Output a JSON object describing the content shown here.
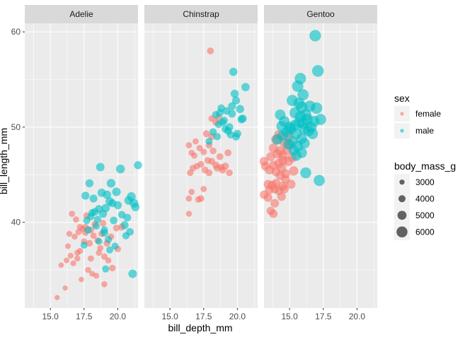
{
  "chart_data": {
    "type": "scatter",
    "facet_by": "species",
    "facets": [
      "Adelie",
      "Chinstrap",
      "Gentoo"
    ],
    "xlabel": "bill_depth_mm",
    "ylabel": "bill_length_mm",
    "xlim": [
      13.1,
      21.5
    ],
    "ylim": [
      31.0,
      60.9
    ],
    "x_ticks": [
      15.0,
      17.5,
      20.0
    ],
    "x_tick_labels": [
      "15.0",
      "17.5",
      "20.0"
    ],
    "y_ticks": [
      40,
      50,
      60
    ],
    "y_tick_labels": [
      "40",
      "50",
      "60"
    ],
    "grid": true,
    "legend_position": "right",
    "color_legend": {
      "title": "sex",
      "entries": [
        {
          "label": "female",
          "color": "#F8766D"
        },
        {
          "label": "male",
          "color": "#00BFC4"
        }
      ]
    },
    "size_legend": {
      "title": "body_mass_g",
      "entries": [
        {
          "label": "3000",
          "value": 3000
        },
        {
          "label": "4000",
          "value": 4000
        },
        {
          "label": "5000",
          "value": 5000
        },
        {
          "label": "6000",
          "value": 6000
        }
      ]
    },
    "series": [
      {
        "facet": "Adelie",
        "sex": "female",
        "color": "#F8766D",
        "points": [
          [
            15.5,
            32.1,
            2900
          ],
          [
            16.1,
            33.1,
            2900
          ],
          [
            15.8,
            35.5,
            3000
          ],
          [
            16.2,
            36.0,
            3100
          ],
          [
            16.7,
            35.7,
            3200
          ],
          [
            16.5,
            36.5,
            3200
          ],
          [
            17.0,
            36.2,
            3300
          ],
          [
            17.2,
            37.0,
            3300
          ],
          [
            16.3,
            37.5,
            3100
          ],
          [
            17.8,
            35.0,
            3300
          ],
          [
            18.0,
            36.2,
            3400
          ],
          [
            17.5,
            38.0,
            3400
          ],
          [
            16.8,
            38.5,
            3300
          ],
          [
            17.1,
            39.0,
            3500
          ],
          [
            17.6,
            39.5,
            3600
          ],
          [
            18.2,
            38.6,
            3450
          ],
          [
            18.5,
            38.1,
            3500
          ],
          [
            18.7,
            37.3,
            3400
          ],
          [
            19.0,
            36.4,
            3500
          ],
          [
            19.3,
            36.0,
            3300
          ],
          [
            18.1,
            34.6,
            3150
          ],
          [
            17.3,
            34.0,
            3000
          ],
          [
            18.4,
            34.4,
            3200
          ],
          [
            19.6,
            35.2,
            3600
          ],
          [
            19.0,
            33.5,
            3300
          ],
          [
            17.2,
            39.5,
            3500
          ],
          [
            16.9,
            40.3,
            3400
          ],
          [
            17.7,
            40.7,
            3700
          ],
          [
            18.0,
            39.2,
            3550
          ],
          [
            18.3,
            39.8,
            3650
          ],
          [
            17.9,
            37.8,
            3600
          ],
          [
            18.8,
            38.8,
            3550
          ],
          [
            19.2,
            37.8,
            3700
          ],
          [
            19.9,
            39.4,
            3650
          ],
          [
            19.5,
            38.5,
            3500
          ],
          [
            20.3,
            39.5,
            3800
          ],
          [
            16.6,
            40.9,
            3400
          ],
          [
            17.4,
            39.3,
            3450
          ],
          [
            18.6,
            36.8,
            3350
          ],
          [
            16.4,
            38.8,
            3200
          ],
          [
            17.0,
            36.8,
            3350
          ],
          [
            20.0,
            37.2,
            3550
          ],
          [
            18.9,
            39.9,
            3600
          ],
          [
            17.6,
            38.9,
            3450
          ]
        ]
      },
      {
        "facet": "Adelie",
        "sex": "male",
        "color": "#00BFC4",
        "points": [
          [
            17.5,
            37.6,
            3800
          ],
          [
            17.8,
            39.2,
            4000
          ],
          [
            18.0,
            40.6,
            3900
          ],
          [
            18.3,
            41.1,
            4100
          ],
          [
            18.5,
            40.3,
            4000
          ],
          [
            18.6,
            41.4,
            4200
          ],
          [
            18.9,
            40.9,
            4300
          ],
          [
            19.1,
            41.5,
            4400
          ],
          [
            19.4,
            42.2,
            4450
          ],
          [
            19.7,
            40.2,
            4100
          ],
          [
            20.0,
            41.8,
            4300
          ],
          [
            20.5,
            39.7,
            4250
          ],
          [
            21.2,
            42.0,
            4600
          ],
          [
            21.0,
            42.7,
            4700
          ],
          [
            20.8,
            42.3,
            4500
          ],
          [
            18.2,
            42.5,
            4200
          ],
          [
            17.6,
            42.8,
            4250
          ],
          [
            18.8,
            43.1,
            4400
          ],
          [
            19.9,
            43.2,
            4550
          ],
          [
            20.2,
            45.6,
            4650
          ],
          [
            21.5,
            46.0,
            4300
          ],
          [
            19.5,
            44.1,
            4600
          ],
          [
            17.9,
            44.1,
            4300
          ],
          [
            19.2,
            42.9,
            4400
          ],
          [
            18.7,
            45.8,
            4500
          ],
          [
            19.0,
            39.2,
            3950
          ],
          [
            20.6,
            38.6,
            3900
          ],
          [
            20.7,
            40.5,
            4100
          ],
          [
            19.8,
            37.5,
            3800
          ],
          [
            19.3,
            38.2,
            3900
          ],
          [
            21.1,
            34.6,
            4500
          ],
          [
            19.1,
            35.1,
            3800
          ],
          [
            18.4,
            39.6,
            3850
          ],
          [
            20.3,
            40.8,
            4000
          ],
          [
            18.1,
            41.0,
            3950
          ],
          [
            19.6,
            42.0,
            4200
          ],
          [
            17.7,
            40.2,
            3900
          ],
          [
            20.9,
            39.0,
            4050
          ],
          [
            18.6,
            38.0,
            3700
          ],
          [
            19.4,
            37.1,
            3800
          ],
          [
            19.0,
            38.9,
            4100
          ],
          [
            21.3,
            41.6,
            4475
          ]
        ]
      },
      {
        "facet": "Chinstrap",
        "sex": "female",
        "color": "#F8766D",
        "points": [
          [
            16.4,
            40.9,
            3250
          ],
          [
            16.4,
            42.5,
            3400
          ],
          [
            16.6,
            43.2,
            3350
          ],
          [
            17.1,
            42.4,
            3500
          ],
          [
            17.3,
            42.5,
            3600
          ],
          [
            16.5,
            45.2,
            3500
          ],
          [
            16.7,
            45.7,
            3600
          ],
          [
            17.0,
            45.9,
            3500
          ],
          [
            17.3,
            46.1,
            3550
          ],
          [
            17.6,
            45.5,
            3700
          ],
          [
            17.9,
            45.2,
            3650
          ],
          [
            18.1,
            46.4,
            3700
          ],
          [
            18.4,
            46.0,
            3800
          ],
          [
            17.8,
            46.5,
            3600
          ],
          [
            18.5,
            45.7,
            3750
          ],
          [
            18.9,
            45.5,
            3800
          ],
          [
            19.1,
            45.9,
            3900
          ],
          [
            18.7,
            46.9,
            3700
          ],
          [
            19.3,
            47.3,
            3750
          ],
          [
            18.2,
            47.5,
            3600
          ],
          [
            17.9,
            48.1,
            3650
          ],
          [
            18.1,
            49.0,
            3700
          ],
          [
            18.4,
            50.5,
            3650
          ],
          [
            18.1,
            50.9,
            3600
          ],
          [
            18.6,
            51.0,
            3750
          ],
          [
            17.7,
            49.3,
            3700
          ],
          [
            16.4,
            48.1,
            3400
          ],
          [
            16.6,
            47.3,
            3350
          ],
          [
            16.8,
            47.0,
            3400
          ],
          [
            17.5,
            47.4,
            3500
          ],
          [
            18.0,
            58.0,
            3700
          ],
          [
            18.8,
            45.8,
            3500
          ],
          [
            17.2,
            47.8,
            3450
          ],
          [
            19.4,
            45.2,
            3650
          ],
          [
            16.9,
            48.5,
            3350
          ],
          [
            17.5,
            43.5,
            3400
          ]
        ]
      },
      {
        "facet": "Chinstrap",
        "sex": "male",
        "color": "#00BFC4",
        "points": [
          [
            17.9,
            48.5,
            3800
          ],
          [
            18.2,
            49.5,
            3900
          ],
          [
            18.4,
            51.3,
            4000
          ],
          [
            18.6,
            50.3,
            3950
          ],
          [
            18.8,
            52.0,
            4000
          ],
          [
            19.0,
            50.7,
            4100
          ],
          [
            19.2,
            51.7,
            4050
          ],
          [
            19.4,
            50.0,
            4200
          ],
          [
            19.6,
            52.2,
            4200
          ],
          [
            19.8,
            53.5,
            4300
          ],
          [
            19.9,
            52.8,
            4250
          ],
          [
            20.2,
            51.9,
            4350
          ],
          [
            20.4,
            50.9,
            4250
          ],
          [
            20.6,
            54.2,
            4400
          ],
          [
            19.5,
            49.2,
            4000
          ],
          [
            19.1,
            49.8,
            3950
          ],
          [
            19.9,
            49.0,
            4100
          ],
          [
            20.0,
            49.3,
            4150
          ],
          [
            19.7,
            55.8,
            4350
          ],
          [
            18.5,
            49.0,
            3900
          ],
          [
            18.7,
            51.5,
            4000
          ],
          [
            19.3,
            49.6,
            4050
          ],
          [
            20.3,
            50.8,
            4200
          ],
          [
            18.9,
            50.5,
            3950
          ],
          [
            19.6,
            51.4,
            4150
          ]
        ]
      },
      {
        "facet": "Gentoo",
        "sex": "female",
        "color": "#F8766D",
        "points": [
          [
            13.1,
            42.9,
            4500
          ],
          [
            13.4,
            44.0,
            4600
          ],
          [
            13.5,
            43.4,
            4550
          ],
          [
            13.7,
            43.9,
            4700
          ],
          [
            13.9,
            43.5,
            4600
          ],
          [
            14.0,
            44.1,
            4650
          ],
          [
            14.2,
            43.3,
            4600
          ],
          [
            14.5,
            43.8,
            4700
          ],
          [
            13.5,
            45.5,
            4800
          ],
          [
            13.8,
            46.0,
            4700
          ],
          [
            14.0,
            45.3,
            4750
          ],
          [
            14.2,
            46.2,
            4850
          ],
          [
            14.4,
            45.7,
            4900
          ],
          [
            14.5,
            46.5,
            4950
          ],
          [
            14.7,
            45.1,
            4800
          ],
          [
            14.9,
            46.4,
            5000
          ],
          [
            14.1,
            47.2,
            4900
          ],
          [
            14.3,
            47.5,
            5000
          ],
          [
            14.5,
            47.0,
            4850
          ],
          [
            14.6,
            48.4,
            5100
          ],
          [
            13.8,
            47.8,
            4900
          ],
          [
            13.6,
            46.9,
            4750
          ],
          [
            13.2,
            45.9,
            4650
          ],
          [
            14.8,
            47.6,
            5050
          ],
          [
            15.0,
            48.2,
            5100
          ],
          [
            14.3,
            44.9,
            4700
          ],
          [
            15.2,
            46.8,
            5050
          ],
          [
            13.9,
            42.0,
            4550
          ],
          [
            13.6,
            41.2,
            4400
          ],
          [
            13.8,
            40.9,
            4450
          ],
          [
            14.2,
            49.2,
            5000
          ],
          [
            14.0,
            48.7,
            5150
          ],
          [
            14.6,
            43.5,
            4750
          ],
          [
            14.4,
            42.7,
            4600
          ],
          [
            15.1,
            44.0,
            4800
          ],
          [
            13.4,
            42.6,
            4500
          ],
          [
            14.7,
            44.5,
            4650
          ],
          [
            13.1,
            46.4,
            4700
          ],
          [
            15.3,
            45.4,
            4950
          ],
          [
            14.9,
            49.1,
            5200
          ]
        ]
      },
      {
        "facet": "Gentoo",
        "sex": "male",
        "color": "#00BFC4",
        "points": [
          [
            14.1,
            48.7,
            5450
          ],
          [
            14.5,
            49.1,
            5550
          ],
          [
            14.8,
            49.5,
            5600
          ],
          [
            15.0,
            50.0,
            5700
          ],
          [
            15.2,
            48.5,
            5500
          ],
          [
            15.4,
            50.2,
            5650
          ],
          [
            15.5,
            49.3,
            5600
          ],
          [
            15.7,
            50.5,
            5700
          ],
          [
            15.8,
            51.1,
            5800
          ],
          [
            16.0,
            50.4,
            5750
          ],
          [
            16.1,
            49.8,
            5700
          ],
          [
            16.3,
            50.8,
            5850
          ],
          [
            15.9,
            52.1,
            5950
          ],
          [
            16.2,
            51.3,
            5900
          ],
          [
            15.6,
            48.0,
            5600
          ],
          [
            15.3,
            47.6,
            5400
          ],
          [
            15.9,
            48.8,
            5550
          ],
          [
            16.4,
            49.6,
            5650
          ],
          [
            16.6,
            50.0,
            5700
          ],
          [
            16.8,
            50.6,
            5850
          ],
          [
            17.0,
            52.0,
            5950
          ],
          [
            17.1,
            55.9,
            6050
          ],
          [
            16.9,
            59.6,
            6000
          ],
          [
            15.8,
            55.1,
            5950
          ],
          [
            15.6,
            54.3,
            5900
          ],
          [
            16.0,
            53.4,
            5850
          ],
          [
            15.7,
            52.5,
            5800
          ],
          [
            14.6,
            50.6,
            5600
          ],
          [
            14.3,
            51.3,
            5500
          ],
          [
            17.3,
            50.8,
            5750
          ],
          [
            17.2,
            44.4,
            5800
          ],
          [
            16.2,
            45.2,
            5700
          ],
          [
            15.9,
            47.3,
            5500
          ],
          [
            14.9,
            48.2,
            5500
          ],
          [
            15.4,
            51.5,
            5750
          ],
          [
            16.5,
            52.2,
            5850
          ],
          [
            15.1,
            49.8,
            5550
          ],
          [
            16.7,
            49.3,
            5650
          ],
          [
            14.4,
            50.1,
            5450
          ],
          [
            15.5,
            47.0,
            5400
          ],
          [
            16.1,
            48.3,
            5600
          ],
          [
            15.2,
            52.8,
            5850
          ]
        ]
      }
    ]
  }
}
